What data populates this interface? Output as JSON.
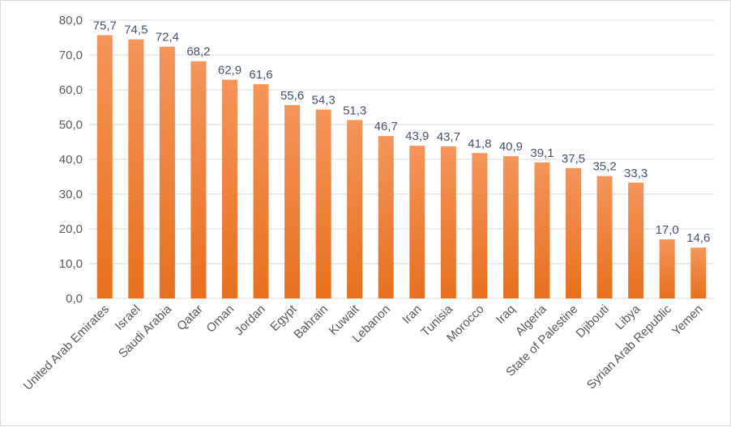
{
  "chart_data": {
    "type": "bar",
    "categories": [
      "United Arab Emirates",
      "Israel",
      "Saudi Arabia",
      "Qatar",
      "Oman",
      "Jordan",
      "Egypt",
      "Bahrain",
      "Kuwait",
      "Lebanon",
      "Iran",
      "Tunisia",
      "Morocco",
      "Iraq",
      "Algeria",
      "State of Palestine",
      "Djibouti",
      "Libya",
      "Syrian Arab Republic",
      "Yemen"
    ],
    "values": [
      75.7,
      74.5,
      72.4,
      68.2,
      62.9,
      61.6,
      55.6,
      54.3,
      51.3,
      46.7,
      43.9,
      43.7,
      41.8,
      40.9,
      39.1,
      37.5,
      35.2,
      33.3,
      17.0,
      14.6
    ],
    "value_labels": [
      "75,7",
      "74,5",
      "72,4",
      "68,2",
      "62,9",
      "61,6",
      "55,6",
      "54,3",
      "51,3",
      "46,7",
      "43,9",
      "43,7",
      "41,8",
      "40,9",
      "39,1",
      "37,5",
      "35,2",
      "33,3",
      "17,0",
      "14,6"
    ],
    "y_ticks": [
      "0,0",
      "10,0",
      "20,0",
      "30,0",
      "40,0",
      "50,0",
      "60,0",
      "70,0",
      "80,0"
    ],
    "ylim": [
      0,
      80
    ],
    "grid": true,
    "legend": "none",
    "title": "",
    "xlabel": "",
    "ylabel": "",
    "colors": {
      "bar_top": "#f4955a",
      "bar_bottom": "#e8701e",
      "grid": "#d9d9d9"
    }
  }
}
